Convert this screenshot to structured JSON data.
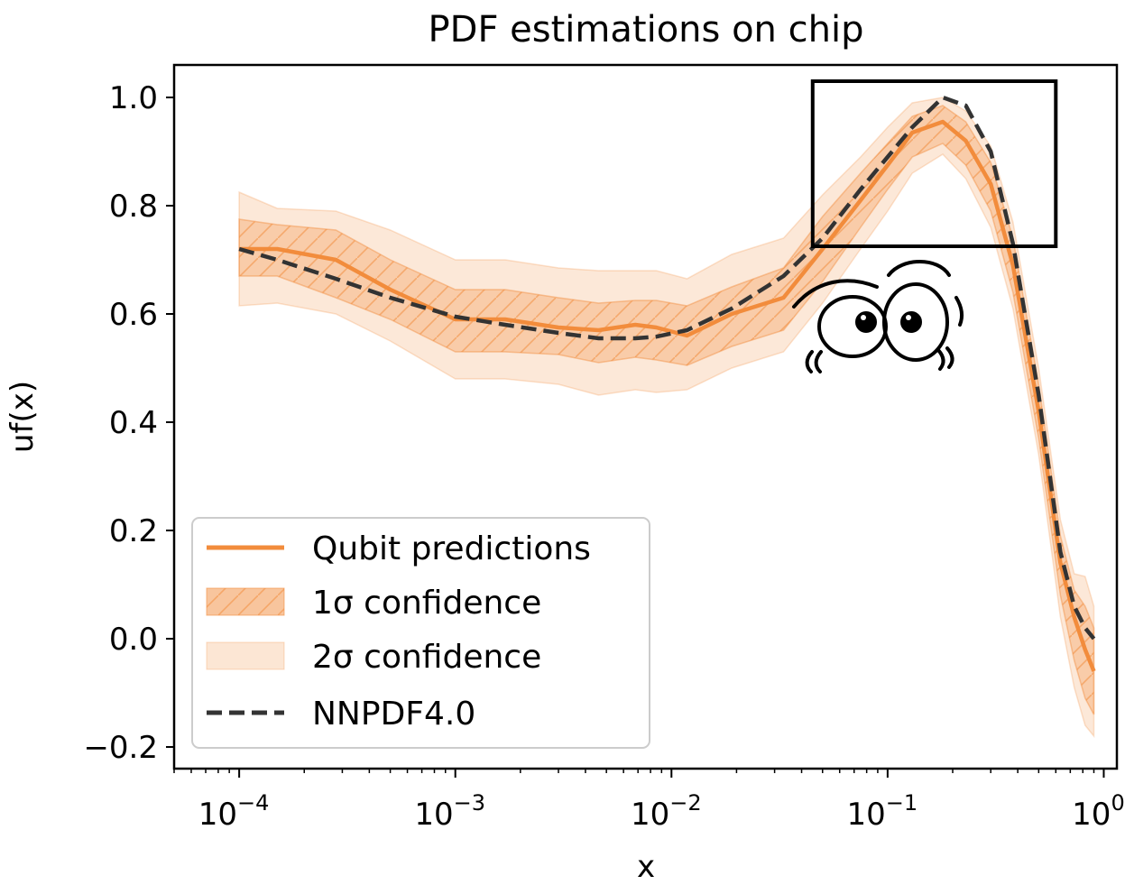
{
  "chart_data": {
    "type": "line",
    "title": "PDF estimations on chip",
    "xlabel": "x",
    "ylabel": "uf(x)",
    "xscale": "log",
    "xlim": [
      5e-05,
      1.15
    ],
    "ylim": [
      -0.24,
      1.06
    ],
    "x_ticks": [
      {
        "base": "10",
        "exp": "−4",
        "value": 0.0001
      },
      {
        "base": "10",
        "exp": "−3",
        "value": 0.001
      },
      {
        "base": "10",
        "exp": "−2",
        "value": 0.01
      },
      {
        "base": "10",
        "exp": "−1",
        "value": 0.1
      },
      {
        "base": "10",
        "exp": "0",
        "value": 1
      }
    ],
    "y_ticks": [
      {
        "label": "−0.2",
        "value": -0.2
      },
      {
        "label": "0.0",
        "value": 0.0
      },
      {
        "label": "0.2",
        "value": 0.2
      },
      {
        "label": "0.4",
        "value": 0.4
      },
      {
        "label": "0.6",
        "value": 0.6
      },
      {
        "label": "0.8",
        "value": 0.8
      },
      {
        "label": "1.0",
        "value": 1.0
      }
    ],
    "x": [
      0.0001,
      0.00015,
      0.00028,
      0.0005,
      0.001,
      0.0017,
      0.003,
      0.0046,
      0.0068,
      0.0085,
      0.0118,
      0.019,
      0.033,
      0.05,
      0.075,
      0.1,
      0.13,
      0.18,
      0.23,
      0.3,
      0.38,
      0.5,
      0.63,
      0.73,
      0.82,
      0.9
    ],
    "series": [
      {
        "name": "Qubit predictions",
        "color": "#f28c3c",
        "values": [
          0.72,
          0.72,
          0.7,
          0.645,
          0.59,
          0.59,
          0.575,
          0.57,
          0.58,
          0.575,
          0.56,
          0.6,
          0.63,
          0.72,
          0.81,
          0.875,
          0.935,
          0.955,
          0.92,
          0.84,
          0.69,
          0.42,
          0.14,
          0.04,
          -0.02,
          -0.06
        ],
        "band_1sigma_lower": [
          0.67,
          0.67,
          0.63,
          0.59,
          0.53,
          0.53,
          0.525,
          0.51,
          0.52,
          0.515,
          0.505,
          0.54,
          0.57,
          0.66,
          0.76,
          0.83,
          0.89,
          0.915,
          0.875,
          0.79,
          0.64,
          0.37,
          0.08,
          -0.04,
          -0.11,
          -0.14
        ],
        "band_1sigma_upper": [
          0.775,
          0.765,
          0.755,
          0.7,
          0.645,
          0.645,
          0.63,
          0.62,
          0.625,
          0.625,
          0.615,
          0.65,
          0.685,
          0.78,
          0.86,
          0.915,
          0.965,
          0.985,
          0.955,
          0.88,
          0.74,
          0.47,
          0.19,
          0.09,
          0.06,
          0.02
        ],
        "band_2sigma_lower": [
          0.615,
          0.62,
          0.6,
          0.55,
          0.48,
          0.48,
          0.47,
          0.45,
          0.46,
          0.455,
          0.46,
          0.5,
          0.53,
          0.62,
          0.72,
          0.79,
          0.86,
          0.895,
          0.85,
          0.76,
          0.61,
          0.34,
          0.04,
          -0.09,
          -0.16,
          -0.18
        ],
        "band_2sigma_upper": [
          0.825,
          0.795,
          0.79,
          0.755,
          0.7,
          0.7,
          0.685,
          0.68,
          0.68,
          0.68,
          0.665,
          0.71,
          0.74,
          0.82,
          0.89,
          0.945,
          0.99,
          1.0,
          0.975,
          0.91,
          0.77,
          0.5,
          0.22,
          0.12,
          0.115,
          0.06
        ]
      },
      {
        "name": "NNPDF4.0",
        "color": "#333333",
        "values": [
          0.72,
          0.7,
          0.665,
          0.63,
          0.595,
          0.58,
          0.565,
          0.555,
          0.555,
          0.558,
          0.57,
          0.61,
          0.67,
          0.74,
          0.83,
          0.89,
          0.945,
          1.0,
          0.985,
          0.9,
          0.73,
          0.45,
          0.16,
          0.06,
          0.02,
          0.0
        ]
      }
    ],
    "legend": {
      "placement": "lower-left",
      "entries": [
        {
          "label": "Qubit predictions",
          "kind": "line",
          "color": "#f28c3c"
        },
        {
          "label": "1σ confidence",
          "kind": "band-hatched",
          "color": "#f28c3c"
        },
        {
          "label": "2σ confidence",
          "kind": "band",
          "color": "#f28c3c"
        },
        {
          "label": "NNPDF4.0",
          "kind": "dashed",
          "color": "#333333"
        }
      ]
    },
    "annotation": {
      "kind": "rectangle",
      "x_range": [
        0.045,
        0.6
      ],
      "y_range": [
        0.725,
        1.03
      ]
    },
    "grid": false
  }
}
